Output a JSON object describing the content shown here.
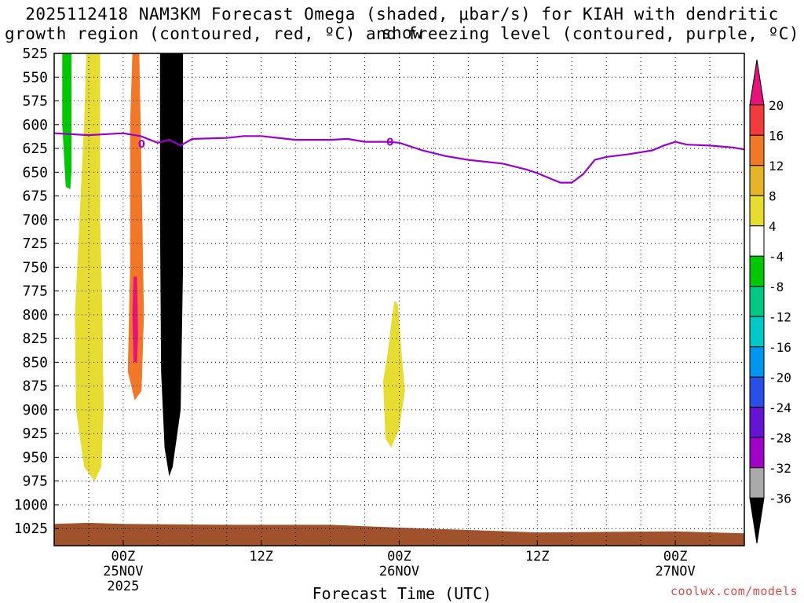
{
  "chart_data": {
    "type": "heatmap",
    "title_line1": "2025112418 NAM3KM Forecast Omega (shaded, μbar/s) for KIAH with dendritic snow",
    "title_line2": "growth region (contoured, red, ºC) and freezing level (contoured, purple, ºC)",
    "xlabel": "Forecast Time (UTC)",
    "credit": "coolwx.com/models",
    "y_ticks": [
      "525",
      "550",
      "575",
      "600",
      "625",
      "650",
      "675",
      "700",
      "725",
      "750",
      "775",
      "800",
      "825",
      "850",
      "875",
      "900",
      "925",
      "950",
      "975",
      "1000",
      "1025"
    ],
    "x_ticks": [
      {
        "hour": 6,
        "l1": "00Z",
        "l2": "25NOV",
        "l3": "2025"
      },
      {
        "hour": 18,
        "l1": "12Z",
        "l2": "",
        "l3": ""
      },
      {
        "hour": 30,
        "l1": "00Z",
        "l2": "26NOV",
        "l3": ""
      },
      {
        "hour": 42,
        "l1": "12Z",
        "l2": "",
        "l3": ""
      },
      {
        "hour": 54,
        "l1": "00Z",
        "l2": "27NOV",
        "l3": ""
      }
    ],
    "x_range_hours": [
      0,
      60
    ],
    "y_range_hPa": [
      525,
      1043
    ],
    "colorbar": {
      "labels": [
        "20",
        "16",
        "12",
        "8",
        "4",
        "-4",
        "-8",
        "-12",
        "-16",
        "-20",
        "-24",
        "-28",
        "-32",
        "-36"
      ],
      "colors": [
        "#e6147a",
        "#f03c3c",
        "#f07828",
        "#e6b428",
        "#e6dc32",
        "#ffffff",
        "#00c800",
        "#00c882",
        "#00c8c8",
        "#0096f0",
        "#2850e6",
        "#6414d2",
        "#a000c8",
        "#aaaaaa",
        "#000000"
      ]
    },
    "freezing_level_contour_label": "0",
    "freezing_level_hPa": [
      [
        0,
        609
      ],
      [
        3,
        611
      ],
      [
        6,
        609
      ],
      [
        7.5,
        612
      ],
      [
        9,
        619
      ],
      [
        10,
        616
      ],
      [
        11,
        622
      ],
      [
        12,
        615
      ],
      [
        15,
        614
      ],
      [
        16.5,
        612
      ],
      [
        18,
        612
      ],
      [
        21,
        616
      ],
      [
        24,
        616
      ],
      [
        25.5,
        615
      ],
      [
        27,
        618
      ],
      [
        29,
        618
      ],
      [
        30,
        619
      ],
      [
        32,
        627
      ],
      [
        34,
        633
      ],
      [
        36,
        637
      ],
      [
        39,
        641
      ],
      [
        41,
        647
      ],
      [
        42,
        651
      ],
      [
        43,
        656
      ],
      [
        44,
        661
      ],
      [
        45,
        661
      ],
      [
        46,
        652
      ],
      [
        47,
        637
      ],
      [
        48,
        634
      ],
      [
        50,
        631
      ],
      [
        52,
        627
      ],
      [
        53,
        622
      ],
      [
        54,
        618
      ],
      [
        55,
        621
      ],
      [
        57,
        622
      ],
      [
        59,
        624
      ],
      [
        60,
        626
      ]
    ],
    "omega_regions": [
      {
        "value": -36,
        "name": "strong-upward-motion-core",
        "color": "#000000",
        "pts": [
          [
            9.2,
            525
          ],
          [
            11.2,
            525
          ],
          [
            11.2,
            750
          ],
          [
            11.0,
            900
          ],
          [
            10.3,
            960
          ],
          [
            10.0,
            970
          ],
          [
            9.6,
            940
          ],
          [
            9.3,
            860
          ],
          [
            9.2,
            700
          ]
        ]
      },
      {
        "value": -8,
        "name": "weak-upward-motion",
        "color": "#00c800",
        "pts": [
          [
            0.7,
            525
          ],
          [
            1.5,
            525
          ],
          [
            1.5,
            650
          ],
          [
            1.4,
            668
          ],
          [
            1.0,
            665
          ],
          [
            0.7,
            600
          ]
        ]
      },
      {
        "value": 4,
        "name": "weak-subsidence",
        "color": "#e6dc32",
        "pts": [
          [
            29.6,
            785
          ],
          [
            29.9,
            790
          ],
          [
            30.2,
            840
          ],
          [
            30.5,
            880
          ],
          [
            30.0,
            920
          ],
          [
            29.3,
            940
          ],
          [
            28.8,
            930
          ],
          [
            28.6,
            870
          ],
          [
            29.0,
            840
          ],
          [
            29.4,
            800
          ]
        ]
      },
      {
        "value": 4,
        "name": "low-level-subsidence",
        "color": "#e6dc32",
        "pts": [
          [
            2.8,
            525
          ],
          [
            4.0,
            525
          ],
          [
            4.0,
            700
          ],
          [
            4.2,
            800
          ],
          [
            4.3,
            900
          ],
          [
            4.1,
            960
          ],
          [
            3.5,
            975
          ],
          [
            2.6,
            960
          ],
          [
            1.9,
            900
          ],
          [
            1.8,
            800
          ],
          [
            2.2,
            700
          ],
          [
            2.6,
            600
          ]
        ]
      },
      {
        "value": 12,
        "name": "moderate-subsidence",
        "color": "#f07828",
        "pts": [
          [
            6.8,
            525
          ],
          [
            7.4,
            525
          ],
          [
            7.6,
            650
          ],
          [
            7.8,
            800
          ],
          [
            7.6,
            880
          ],
          [
            7.0,
            890
          ],
          [
            6.4,
            860
          ],
          [
            6.6,
            750
          ],
          [
            6.6,
            600
          ]
        ]
      },
      {
        "value": 20,
        "name": "strong-subsidence",
        "color": "#e6147a",
        "pts": [
          [
            6.9,
            760
          ],
          [
            7.2,
            760
          ],
          [
            7.3,
            820
          ],
          [
            7.2,
            850
          ],
          [
            6.9,
            850
          ],
          [
            6.8,
            800
          ]
        ]
      }
    ],
    "ground_surface_hPa": [
      [
        0,
        1020
      ],
      [
        3,
        1019
      ],
      [
        6,
        1020
      ],
      [
        15,
        1021
      ],
      [
        24,
        1021
      ],
      [
        30,
        1024
      ],
      [
        42,
        1029
      ],
      [
        54,
        1028
      ],
      [
        60,
        1030
      ]
    ]
  }
}
